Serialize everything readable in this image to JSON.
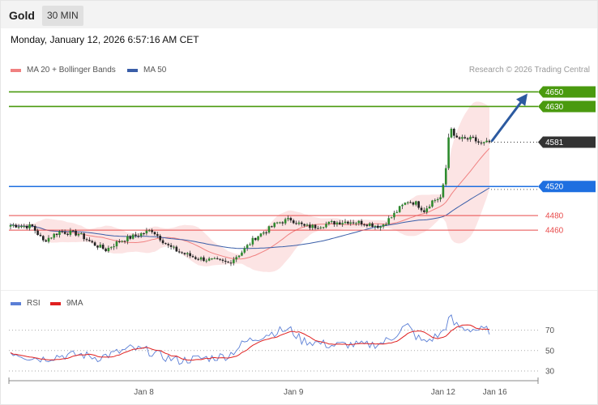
{
  "header": {
    "title": "Gold",
    "timeframe": "30 MIN"
  },
  "datetime": "Monday, January 12, 2026 6:57:16 AM CET",
  "copyright": "Research © 2026 Trading Central",
  "legend_price": [
    {
      "label": "MA 20 + Bollinger Bands",
      "color": "#f08080"
    },
    {
      "label": "MA 50",
      "color": "#3a5ea8"
    }
  ],
  "legend_rsi": [
    {
      "label": "RSI",
      "color": "#5b7fd6"
    },
    {
      "label": "9MA",
      "color": "#e02020"
    }
  ],
  "chart_data": [
    {
      "type": "candlestick",
      "title": "Gold",
      "timeframe": "30 MIN",
      "y_range": [
        4380,
        4665
      ],
      "x_ticks": [
        {
          "label": "Jan 8",
          "index": 49
        },
        {
          "label": "Jan 9",
          "index": 104
        },
        {
          "label": "Jan 12",
          "index": 159
        },
        {
          "label": "Jan 16",
          "index": 178
        }
      ],
      "current_price": 4581,
      "levels": [
        {
          "label": "4650",
          "value": 4650,
          "color": "#4a9a0f",
          "style": "solid",
          "tag": "filled"
        },
        {
          "label": "4630",
          "value": 4630,
          "color": "#4a9a0f",
          "style": "solid",
          "tag": "filled"
        },
        {
          "label": "4581",
          "value": 4581,
          "color": "#333333",
          "style": "dotted",
          "tag": "filled"
        },
        {
          "label": "4520",
          "value": 4520,
          "color": "#1e6fe0",
          "style": "solid",
          "tag": "filled"
        },
        {
          "label": "4480",
          "value": 4480,
          "color": "#e84a4a",
          "style": "solid",
          "tag": "text"
        },
        {
          "label": "4460",
          "value": 4460,
          "color": "#e84a4a",
          "style": "solid",
          "tag": "text"
        }
      ],
      "close_anchors": [
        [
          0,
          4467
        ],
        [
          8,
          4465
        ],
        [
          12,
          4445
        ],
        [
          18,
          4458
        ],
        [
          25,
          4455
        ],
        [
          30,
          4442
        ],
        [
          35,
          4433
        ],
        [
          40,
          4445
        ],
        [
          48,
          4455
        ],
        [
          52,
          4460
        ],
        [
          58,
          4438
        ],
        [
          62,
          4430
        ],
        [
          68,
          4422
        ],
        [
          75,
          4418
        ],
        [
          80,
          4415
        ],
        [
          85,
          4430
        ],
        [
          90,
          4450
        ],
        [
          95,
          4462
        ],
        [
          98,
          4470
        ],
        [
          103,
          4475
        ],
        [
          108,
          4465
        ],
        [
          112,
          4465
        ],
        [
          118,
          4470
        ],
        [
          124,
          4472
        ],
        [
          130,
          4470
        ],
        [
          136,
          4465
        ],
        [
          140,
          4478
        ],
        [
          143,
          4490
        ],
        [
          146,
          4500
        ],
        [
          149,
          4497
        ],
        [
          152,
          4487
        ],
        [
          155,
          4500
        ],
        [
          158,
          4505
        ],
        [
          159,
          4520
        ],
        [
          160,
          4545
        ],
        [
          161,
          4588
        ],
        [
          162,
          4602
        ],
        [
          163,
          4587
        ],
        [
          166,
          4585
        ],
        [
          170,
          4585
        ],
        [
          173,
          4578
        ],
        [
          176,
          4581
        ]
      ],
      "bollinger": {
        "period": 20,
        "deviations": 2
      },
      "ma_long": 50,
      "forecast_arrow": {
        "from": [
          177,
          4583
        ],
        "to": [
          190,
          4650
        ],
        "color": "#2c5aa0"
      }
    },
    {
      "type": "line",
      "title": "RSI",
      "y_range": [
        22,
        88
      ],
      "y_ticks": [
        30,
        50,
        70
      ],
      "rsi_anchors": [
        [
          0,
          49
        ],
        [
          6,
          44
        ],
        [
          12,
          42
        ],
        [
          18,
          45
        ],
        [
          26,
          46
        ],
        [
          32,
          43
        ],
        [
          38,
          47
        ],
        [
          44,
          52
        ],
        [
          50,
          50
        ],
        [
          56,
          44
        ],
        [
          62,
          40
        ],
        [
          68,
          42
        ],
        [
          74,
          43
        ],
        [
          80,
          45
        ],
        [
          86,
          58
        ],
        [
          90,
          62
        ],
        [
          94,
          66
        ],
        [
          97,
          68
        ],
        [
          100,
          70
        ],
        [
          103,
          70
        ],
        [
          107,
          60
        ],
        [
          112,
          58
        ],
        [
          118,
          55
        ],
        [
          124,
          56
        ],
        [
          130,
          55
        ],
        [
          136,
          57
        ],
        [
          140,
          62
        ],
        [
          144,
          72
        ],
        [
          146,
          74
        ],
        [
          149,
          64
        ],
        [
          152,
          58
        ],
        [
          155,
          62
        ],
        [
          158,
          66
        ],
        [
          160,
          74
        ],
        [
          161,
          80
        ],
        [
          162,
          82
        ],
        [
          163,
          76
        ],
        [
          166,
          72
        ],
        [
          170,
          71
        ],
        [
          173,
          70
        ],
        [
          176,
          70
        ]
      ],
      "ma_period": 9
    }
  ]
}
